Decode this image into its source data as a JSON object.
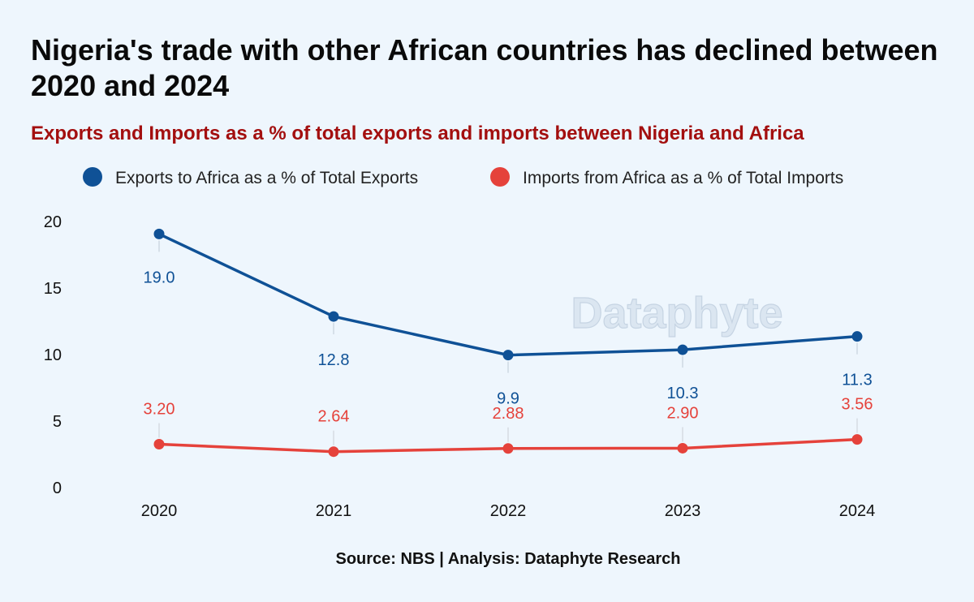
{
  "title": "Nigeria's trade with other African countries has declined between 2020 and 2024",
  "subtitle": "Exports and Imports as a % of total exports and imports between Nigeria and Africa",
  "source": "Source: NBS | Analysis: Dataphyte Research",
  "watermark": "Dataphyte",
  "colors": {
    "exports": "#0f5196",
    "imports": "#e5423b",
    "title": "#0a0a0a",
    "subtitle": "#a30f0f",
    "background": "#eef6fd"
  },
  "chart_data": {
    "type": "line",
    "title": "Nigeria's trade with other African countries has declined between 2020 and 2024",
    "subtitle": "Exports and Imports as a % of total exports and imports between Nigeria and Africa",
    "xlabel": "",
    "ylabel": "",
    "categories": [
      "2020",
      "2021",
      "2022",
      "2023",
      "2024"
    ],
    "ylim": [
      0,
      20
    ],
    "yticks": [
      0,
      5,
      10,
      15,
      20
    ],
    "grid": false,
    "legend_position": "top",
    "series": [
      {
        "name": "Exports to Africa as a % of Total Exports",
        "values": [
          19.0,
          12.8,
          9.9,
          10.3,
          11.3
        ],
        "labels": [
          "19.0",
          "12.8",
          "9.9",
          "10.3",
          "11.3"
        ],
        "color": "#0f5196"
      },
      {
        "name": "Imports from Africa as a % of Total Imports",
        "values": [
          3.2,
          2.64,
          2.88,
          2.9,
          3.56
        ],
        "labels": [
          "3.20",
          "2.64",
          "2.88",
          "2.90",
          "3.56"
        ],
        "color": "#e5423b"
      }
    ]
  }
}
